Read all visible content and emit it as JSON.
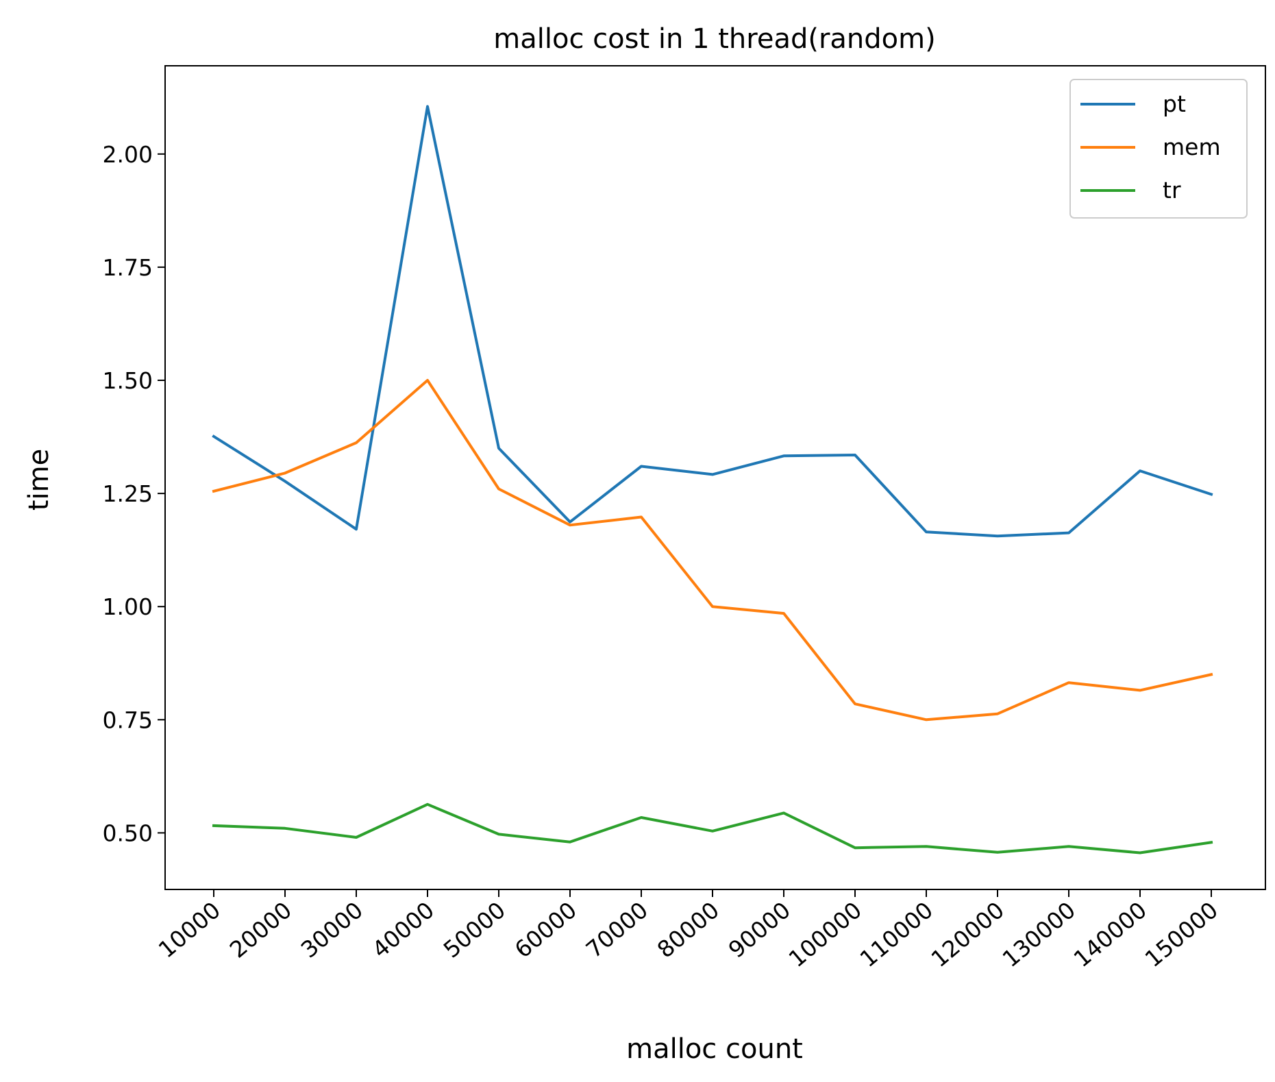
{
  "chart_data": {
    "type": "line",
    "title": "malloc cost in 1 thread(random)",
    "xlabel": "malloc count",
    "ylabel": "time",
    "categories": [
      "10000",
      "20000",
      "30000",
      "40000",
      "50000",
      "60000",
      "70000",
      "80000",
      "90000",
      "100000",
      "110000",
      "120000",
      "130000",
      "140000",
      "150000"
    ],
    "ylim": [
      0.375,
      2.195
    ],
    "yticks": [
      "0.50",
      "0.75",
      "1.00",
      "1.25",
      "1.50",
      "1.75",
      "2.00"
    ],
    "ytick_values": [
      0.5,
      0.75,
      1.0,
      1.25,
      1.5,
      1.75,
      2.0
    ],
    "grid": false,
    "legend_position": "top-right",
    "series": [
      {
        "name": "pt",
        "color": "#1f77b4",
        "values": [
          1.376,
          1.277,
          1.171,
          2.105,
          1.35,
          1.187,
          1.31,
          1.292,
          1.333,
          1.335,
          1.165,
          1.156,
          1.163,
          1.3,
          1.248
        ]
      },
      {
        "name": "mem",
        "color": "#ff7f0e",
        "values": [
          1.255,
          1.295,
          1.362,
          1.5,
          1.26,
          1.18,
          1.198,
          1.0,
          0.985,
          0.785,
          0.75,
          0.763,
          0.832,
          0.815,
          0.85
        ]
      },
      {
        "name": "tr",
        "color": "#2ca02c",
        "values": [
          0.516,
          0.51,
          0.49,
          0.563,
          0.497,
          0.48,
          0.534,
          0.504,
          0.544,
          0.467,
          0.47,
          0.457,
          0.47,
          0.456,
          0.479
        ]
      }
    ]
  }
}
